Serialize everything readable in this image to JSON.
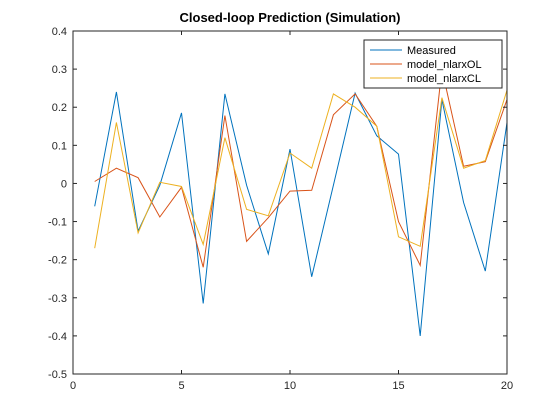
{
  "chart_data": {
    "type": "line",
    "title": "Closed-loop Prediction (Simulation)",
    "xlabel": "",
    "ylabel": "",
    "xlim": [
      0,
      20
    ],
    "ylim": [
      -0.5,
      0.4
    ],
    "xticks": [
      0,
      5,
      10,
      15,
      20
    ],
    "yticks": [
      -0.5,
      -0.4,
      -0.3,
      -0.2,
      -0.1,
      0,
      0.1,
      0.2,
      0.3,
      0.4
    ],
    "grid": false,
    "legend_position": "top-right",
    "x": [
      1,
      2,
      3,
      4,
      5,
      6,
      7,
      8,
      9,
      10,
      11,
      12,
      13,
      14,
      15,
      16,
      17,
      18,
      19,
      20
    ],
    "series": [
      {
        "name": "Measured",
        "color": "#0072BD",
        "values": [
          -0.06,
          0.24,
          -0.125,
          -0.005,
          0.185,
          -0.315,
          0.235,
          -0.005,
          -0.185,
          0.09,
          -0.245,
          -0.005,
          0.237,
          0.125,
          0.077,
          -0.4,
          0.22,
          -0.05,
          -0.23,
          0.16
        ]
      },
      {
        "name": "model_nlarxOL",
        "color": "#D95319",
        "values": [
          0.005,
          0.04,
          0.015,
          -0.088,
          -0.01,
          -0.22,
          0.178,
          -0.152,
          -0.09,
          -0.02,
          -0.018,
          0.18,
          0.235,
          0.15,
          -0.1,
          -0.215,
          0.3,
          0.045,
          0.057,
          0.22
        ]
      },
      {
        "name": "model_nlarxCL",
        "color": "#EDB120",
        "values": [
          -0.17,
          0.16,
          -0.13,
          0.003,
          -0.008,
          -0.16,
          0.12,
          -0.068,
          -0.085,
          0.08,
          0.04,
          0.235,
          0.2,
          0.15,
          -0.14,
          -0.165,
          0.225,
          0.04,
          0.06,
          0.245
        ]
      }
    ]
  }
}
